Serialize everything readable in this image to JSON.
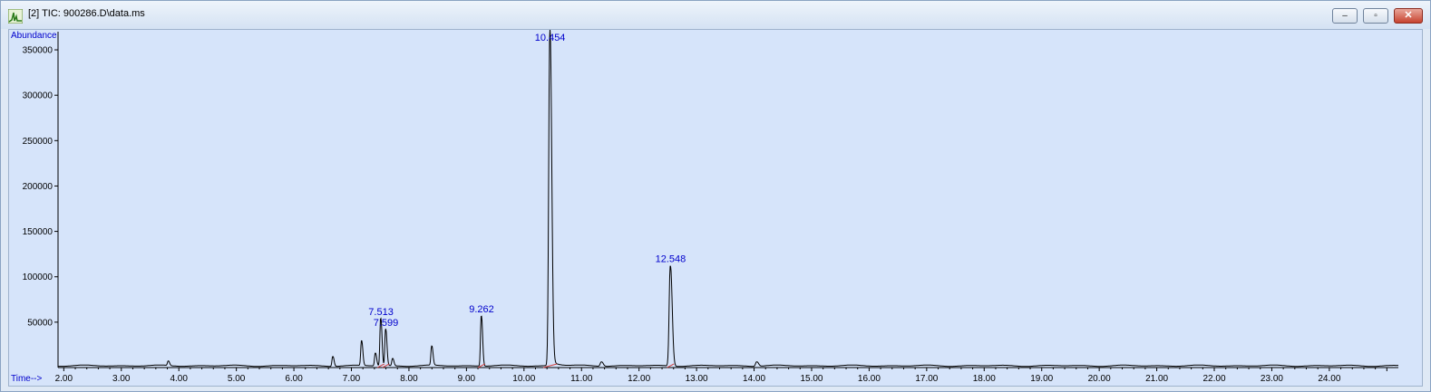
{
  "window": {
    "title": "[2] TIC: 900286.D\\data.ms"
  },
  "buttons": {
    "minimize": "–",
    "maximize": "▫",
    "close": "✕"
  },
  "icons": {
    "app": "chromatogram-icon"
  },
  "colors": {
    "trace": "#000000",
    "label": "#0000cc",
    "baseline": "#d04040",
    "background": "#d6e4fa"
  },
  "chart_data": {
    "type": "line",
    "title": "",
    "xlabel": "Time-->",
    "ylabel": "Abundance",
    "xlim": [
      1.9,
      25.2
    ],
    "ylim": [
      0,
      370000
    ],
    "x_ticks": [
      "2.00",
      "3.00",
      "4.00",
      "5.00",
      "6.00",
      "7.00",
      "8.00",
      "9.00",
      "10.00",
      "11.00",
      "12.00",
      "13.00",
      "14.00",
      "15.00",
      "16.00",
      "17.00",
      "18.00",
      "19.00",
      "20.00",
      "21.00",
      "22.00",
      "23.00",
      "24.00"
    ],
    "y_ticks": [
      "50000",
      "100000",
      "150000",
      "200000",
      "250000",
      "300000",
      "350000"
    ],
    "peaks": [
      {
        "rt": 3.82,
        "height": 5000,
        "label": ""
      },
      {
        "rt": 6.68,
        "height": 11000,
        "label": ""
      },
      {
        "rt": 7.18,
        "height": 27000,
        "label": ""
      },
      {
        "rt": 7.42,
        "height": 14000,
        "label": ""
      },
      {
        "rt": 7.513,
        "height": 52000,
        "label": "7.513"
      },
      {
        "rt": 7.599,
        "height": 40000,
        "label": "7.599"
      },
      {
        "rt": 7.72,
        "height": 8000,
        "label": ""
      },
      {
        "rt": 8.4,
        "height": 21000,
        "label": ""
      },
      {
        "rt": 9.262,
        "height": 55000,
        "label": "9.262"
      },
      {
        "rt": 10.454,
        "height": 365000,
        "label": "10.454"
      },
      {
        "rt": 11.35,
        "height": 5000,
        "label": ""
      },
      {
        "rt": 12.548,
        "height": 110000,
        "label": "12.548"
      },
      {
        "rt": 14.05,
        "height": 5000,
        "label": ""
      }
    ],
    "baseline_level": 2000,
    "grid": false,
    "legend": "none"
  }
}
